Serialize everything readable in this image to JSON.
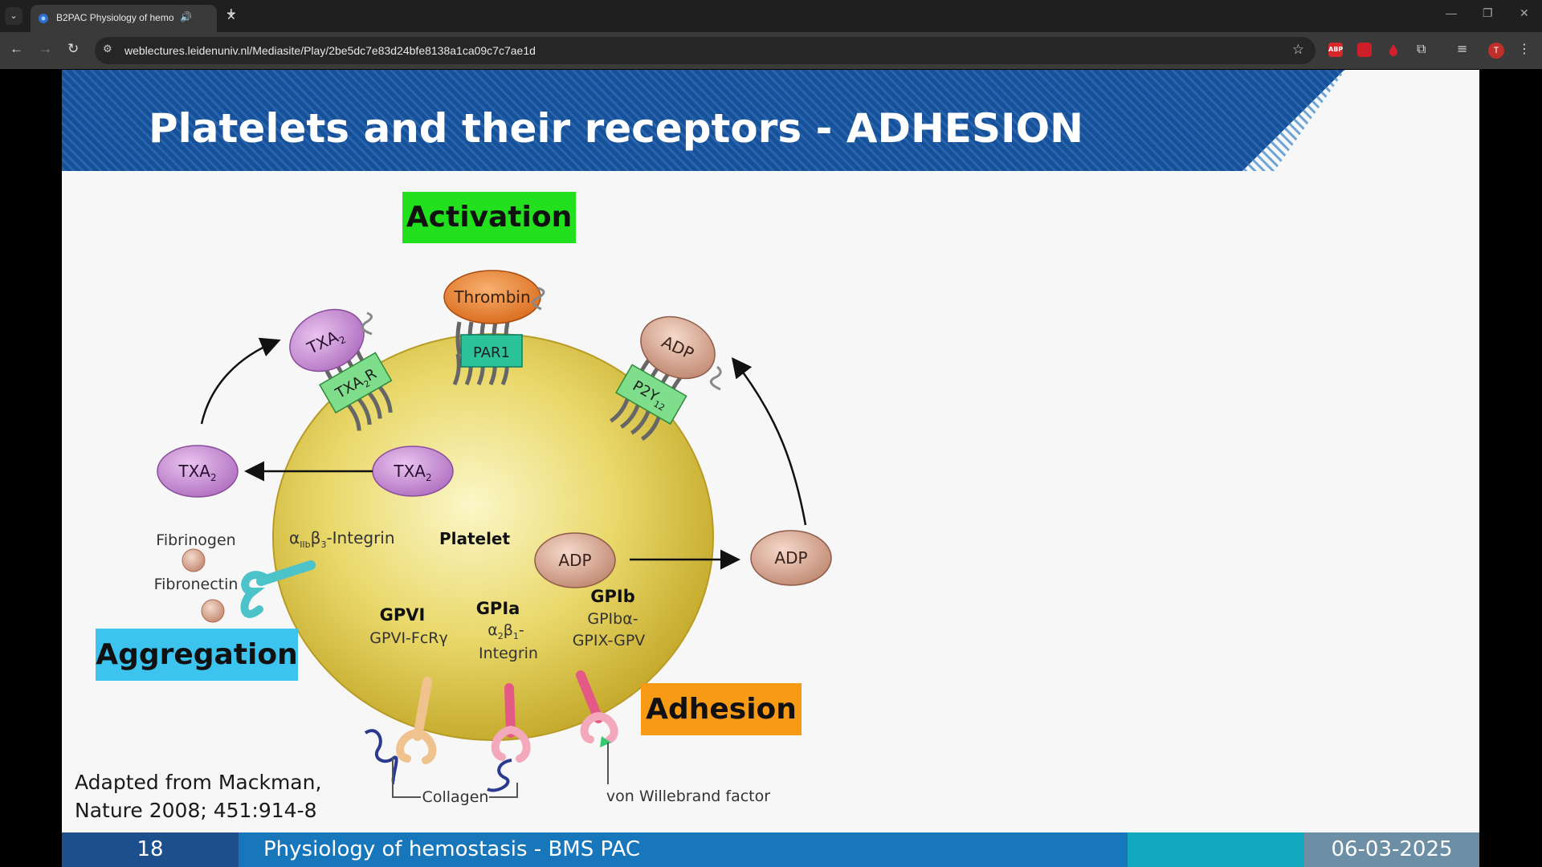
{
  "browser": {
    "tab": {
      "title": "B2PAC Physiology of hemo",
      "audio_icon": "speaker-icon",
      "close_label": "✕"
    },
    "new_tab_label": "+",
    "url": "weblectures.leidenuniv.nl/Mediasite/Play/2be5dc7e83d24bfe8138a1ca09c7c7ae1d",
    "extensions": [
      {
        "name": "adblock-plus-icon",
        "text": "ABP",
        "color": "#d6282b"
      },
      {
        "name": "lock-extension-icon",
        "text": "🔒",
        "color": "#cc1f2a"
      },
      {
        "name": "red-drop-extension-icon",
        "text": "",
        "color": "#d11f2d"
      }
    ],
    "profile_initial": "T"
  },
  "slide": {
    "title": "Platelets and their receptors - ADHESION",
    "labels": {
      "activation": "Activation",
      "aggregation": "Aggregation",
      "adhesion": "Adhesion"
    },
    "citation_line1": "Adapted from Mackman,",
    "citation_line2": "Nature 2008; 451:914-8",
    "footer": {
      "page_number": "18",
      "course": "Physiology of hemostasis - BMS PAC",
      "date": "06-03-2025"
    },
    "colors": {
      "header_blue": "#15509a",
      "activation_green": "#22e01e",
      "aggregation_blue": "#3cc3ee",
      "adhesion_orange": "#f79a16"
    }
  },
  "diagram": {
    "thrombin": "Thrombin",
    "par1": "PAR1",
    "txa2": "TXA",
    "txa2_sub": "2",
    "txa2r": "TXA",
    "txa2r_sub": "2",
    "txa2r_suffix": "R",
    "adp": "ADP",
    "p2y12": "P2Y",
    "p2y12_sub": "12",
    "platelet": "Platelet",
    "integrin_alpha": "α",
    "integrin_alpha_sub": "IIb",
    "integrin_beta": "β",
    "integrin_beta_sub": "3",
    "integrin_suffix": "-Integrin",
    "fibrinogen": "Fibrinogen",
    "fibronectin": "Fibronectin",
    "gpvi": "GPVI",
    "gpvi_fcr": "GPVI-FcRγ",
    "gpia": "GPIa",
    "gpia_l1_a": "α",
    "gpia_l1_a_sub": "2",
    "gpia_l1_b": "β",
    "gpia_l1_b_sub": "1",
    "gpia_l1_suffix": "-",
    "gpia_l2": "Integrin",
    "gpib": "GPIb",
    "gpib_l1": "GPIbα-",
    "gpib_l2": "GPIX-GPV",
    "collagen": "Collagen",
    "vwf": "von Willebrand factor"
  }
}
